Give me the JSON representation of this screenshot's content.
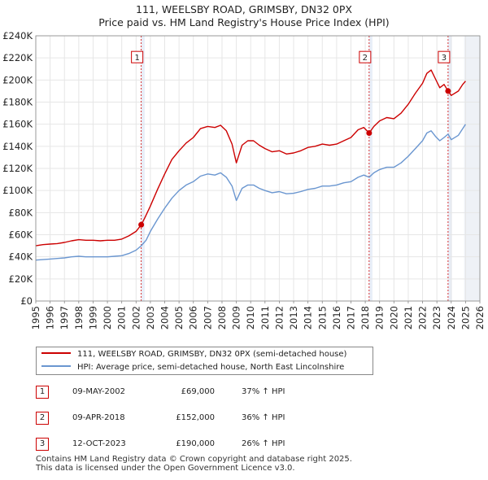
{
  "title_line1": "111, WEELSBY ROAD, GRIMSBY, DN32 0PX",
  "title_line2": "Price paid vs. HM Land Registry's House Price Index (HPI)",
  "colors": {
    "price": "#cc0000",
    "hpi": "#6a96d0",
    "grid": "#e6e6e6",
    "shade": "#e8eef8",
    "future": "#eef1f6"
  },
  "chart_data": {
    "type": "line",
    "xlim": [
      1995,
      2026
    ],
    "ylim": [
      0,
      240000
    ],
    "x_ticks": [
      1995,
      1996,
      1997,
      1998,
      1999,
      2000,
      2001,
      2002,
      2003,
      2004,
      2005,
      2006,
      2007,
      2008,
      2009,
      2010,
      2011,
      2012,
      2013,
      2014,
      2015,
      2016,
      2017,
      2018,
      2019,
      2020,
      2021,
      2022,
      2023,
      2024,
      2025,
      2026
    ],
    "y_ticks": [
      {
        "value": 0,
        "label": "£0"
      },
      {
        "value": 20000,
        "label": "£20K"
      },
      {
        "value": 40000,
        "label": "£40K"
      },
      {
        "value": 60000,
        "label": "£60K"
      },
      {
        "value": 80000,
        "label": "£80K"
      },
      {
        "value": 100000,
        "label": "£100K"
      },
      {
        "value": 120000,
        "label": "£120K"
      },
      {
        "value": 140000,
        "label": "£140K"
      },
      {
        "value": 160000,
        "label": "£160K"
      },
      {
        "value": 180000,
        "label": "£180K"
      },
      {
        "value": 200000,
        "label": "£200K"
      },
      {
        "value": 220000,
        "label": "£220K"
      },
      {
        "value": 240000,
        "label": "£240K"
      }
    ],
    "series": [
      {
        "name": "111, WEELSBY ROAD, GRIMSBY, DN32 0PX (semi-detached house)",
        "color": "#cc0000",
        "points": [
          [
            1995.0,
            50000
          ],
          [
            1995.5,
            51000
          ],
          [
            1996.0,
            51500
          ],
          [
            1996.5,
            52000
          ],
          [
            1997.0,
            53000
          ],
          [
            1997.5,
            54500
          ],
          [
            1998.0,
            55500
          ],
          [
            1998.5,
            55000
          ],
          [
            1999.0,
            55000
          ],
          [
            1999.5,
            54500
          ],
          [
            2000.0,
            55000
          ],
          [
            2000.5,
            55000
          ],
          [
            2001.0,
            56000
          ],
          [
            2001.5,
            59000
          ],
          [
            2002.0,
            63000
          ],
          [
            2002.36,
            69000
          ],
          [
            2002.6,
            75000
          ],
          [
            2003.0,
            86000
          ],
          [
            2003.5,
            101000
          ],
          [
            2004.0,
            115000
          ],
          [
            2004.5,
            128000
          ],
          [
            2005.0,
            136000
          ],
          [
            2005.5,
            143000
          ],
          [
            2006.0,
            148000
          ],
          [
            2006.5,
            156000
          ],
          [
            2007.0,
            158000
          ],
          [
            2007.5,
            157000
          ],
          [
            2007.9,
            159000
          ],
          [
            2008.3,
            154000
          ],
          [
            2008.7,
            142000
          ],
          [
            2009.0,
            125000
          ],
          [
            2009.4,
            141000
          ],
          [
            2009.8,
            145000
          ],
          [
            2010.2,
            145000
          ],
          [
            2010.6,
            141000
          ],
          [
            2011.0,
            138000
          ],
          [
            2011.5,
            135000
          ],
          [
            2012.0,
            136000
          ],
          [
            2012.5,
            133000
          ],
          [
            2013.0,
            134000
          ],
          [
            2013.5,
            136000
          ],
          [
            2014.0,
            139000
          ],
          [
            2014.5,
            140000
          ],
          [
            2015.0,
            142000
          ],
          [
            2015.5,
            141000
          ],
          [
            2016.0,
            142000
          ],
          [
            2016.5,
            145000
          ],
          [
            2017.0,
            148000
          ],
          [
            2017.5,
            155000
          ],
          [
            2017.9,
            157000
          ],
          [
            2018.27,
            152000
          ],
          [
            2018.6,
            158000
          ],
          [
            2019.0,
            163000
          ],
          [
            2019.5,
            166000
          ],
          [
            2020.0,
            165000
          ],
          [
            2020.5,
            170000
          ],
          [
            2021.0,
            178000
          ],
          [
            2021.5,
            188000
          ],
          [
            2022.0,
            197000
          ],
          [
            2022.3,
            206000
          ],
          [
            2022.6,
            209000
          ],
          [
            2022.9,
            201000
          ],
          [
            2023.2,
            193000
          ],
          [
            2023.5,
            196000
          ],
          [
            2023.78,
            190000
          ],
          [
            2024.0,
            186000
          ],
          [
            2024.5,
            190000
          ],
          [
            2024.8,
            196000
          ],
          [
            2025.0,
            199000
          ]
        ]
      },
      {
        "name": "HPI: Average price, semi-detached house, North East Lincolnshire",
        "color": "#6a96d0",
        "points": [
          [
            1995.0,
            37000
          ],
          [
            1995.5,
            37500
          ],
          [
            1996.0,
            38000
          ],
          [
            1996.5,
            38500
          ],
          [
            1997.0,
            39000
          ],
          [
            1997.5,
            40000
          ],
          [
            1998.0,
            40500
          ],
          [
            1998.5,
            40000
          ],
          [
            1999.0,
            40000
          ],
          [
            1999.5,
            40000
          ],
          [
            2000.0,
            40000
          ],
          [
            2000.5,
            40500
          ],
          [
            2001.0,
            41000
          ],
          [
            2001.5,
            43000
          ],
          [
            2002.0,
            46000
          ],
          [
            2002.36,
            50000
          ],
          [
            2002.7,
            55000
          ],
          [
            2003.0,
            63000
          ],
          [
            2003.5,
            74000
          ],
          [
            2004.0,
            84000
          ],
          [
            2004.5,
            93000
          ],
          [
            2005.0,
            100000
          ],
          [
            2005.5,
            105000
          ],
          [
            2006.0,
            108000
          ],
          [
            2006.5,
            113000
          ],
          [
            2007.0,
            115000
          ],
          [
            2007.5,
            114000
          ],
          [
            2007.9,
            116000
          ],
          [
            2008.3,
            112000
          ],
          [
            2008.7,
            104000
          ],
          [
            2009.0,
            91000
          ],
          [
            2009.4,
            102000
          ],
          [
            2009.8,
            105000
          ],
          [
            2010.2,
            105000
          ],
          [
            2010.6,
            102000
          ],
          [
            2011.0,
            100000
          ],
          [
            2011.5,
            98000
          ],
          [
            2012.0,
            99000
          ],
          [
            2012.5,
            97000
          ],
          [
            2013.0,
            97500
          ],
          [
            2013.5,
            99000
          ],
          [
            2014.0,
            101000
          ],
          [
            2014.5,
            102000
          ],
          [
            2015.0,
            104000
          ],
          [
            2015.5,
            104000
          ],
          [
            2016.0,
            105000
          ],
          [
            2016.5,
            107000
          ],
          [
            2017.0,
            108000
          ],
          [
            2017.5,
            112000
          ],
          [
            2017.9,
            114000
          ],
          [
            2018.27,
            112000
          ],
          [
            2018.6,
            116000
          ],
          [
            2019.0,
            119000
          ],
          [
            2019.5,
            121000
          ],
          [
            2020.0,
            121000
          ],
          [
            2020.5,
            125000
          ],
          [
            2021.0,
            131000
          ],
          [
            2021.5,
            138000
          ],
          [
            2022.0,
            145000
          ],
          [
            2022.3,
            152000
          ],
          [
            2022.6,
            154000
          ],
          [
            2022.9,
            149000
          ],
          [
            2023.2,
            145000
          ],
          [
            2023.5,
            148000
          ],
          [
            2023.78,
            151000
          ],
          [
            2024.0,
            146000
          ],
          [
            2024.5,
            150000
          ],
          [
            2024.8,
            156000
          ],
          [
            2025.0,
            160000
          ]
        ]
      }
    ],
    "future_from": 2024.9,
    "shaded_periods": [
      [
        2002.36,
        2002.6
      ],
      [
        2018.27,
        2018.5
      ],
      [
        2023.78,
        2024.05
      ]
    ],
    "sales": [
      {
        "id": "1",
        "x": 2002.36,
        "price": 69000
      },
      {
        "id": "2",
        "x": 2018.27,
        "price": 152000
      },
      {
        "id": "3",
        "x": 2023.78,
        "price": 190000
      }
    ],
    "marker_label_y": 220000
  },
  "legend": {
    "price_label": "111, WEELSBY ROAD, GRIMSBY, DN32 0PX (semi-detached house)",
    "hpi_label": "HPI: Average price, semi-detached house, North East Lincolnshire"
  },
  "sales_table": [
    {
      "id": "1",
      "date": "09-MAY-2002",
      "price": "£69,000",
      "hpi": "37% ↑ HPI"
    },
    {
      "id": "2",
      "date": "09-APR-2018",
      "price": "£152,000",
      "hpi": "36% ↑ HPI"
    },
    {
      "id": "3",
      "date": "12-OCT-2023",
      "price": "£190,000",
      "hpi": "26% ↑ HPI"
    }
  ],
  "footer_line1": "Contains HM Land Registry data © Crown copyright and database right 2025.",
  "footer_line2": "This data is licensed under the Open Government Licence v3.0."
}
